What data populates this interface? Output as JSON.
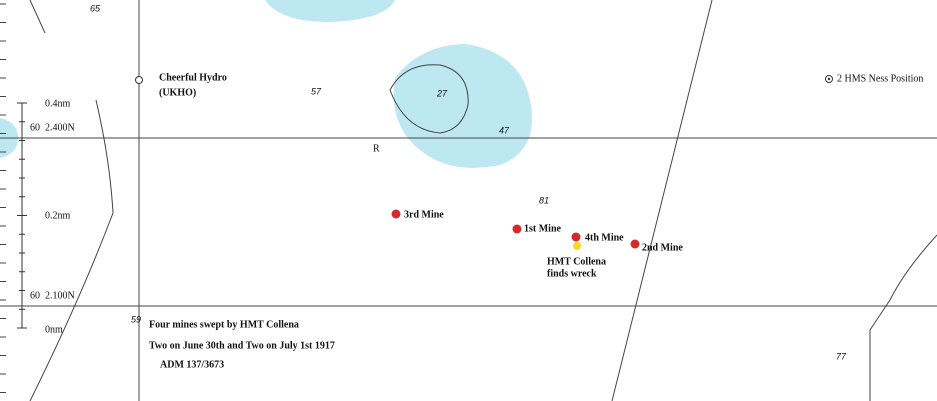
{
  "depths": {
    "d65": 65,
    "d57": 57,
    "d27": 27,
    "d47": 47,
    "d81": 81,
    "d59": 59,
    "d77": 77
  },
  "marker": "R",
  "positions": {
    "hydro": [
      "Cheerful Hydro",
      "(UKHO)"
    ],
    "ness": "2 HMS Ness Position"
  },
  "mines": [
    "3rd Mine",
    "1st Mine",
    "4th Mine",
    "2nd Mine"
  ],
  "wreck": [
    "HMT Collena",
    "finds wreck"
  ],
  "scale": {
    "top": "0.4nm",
    "lat_top": "60  2.400N",
    "mid": "0.2nm",
    "lat_bottom": "60  2.100N",
    "bottom": "0nm"
  },
  "notes": [
    "Four mines swept by HMT Collena",
    "Two on June 30th and Two on July 1st 1917",
    "ADM 137/3673"
  ]
}
